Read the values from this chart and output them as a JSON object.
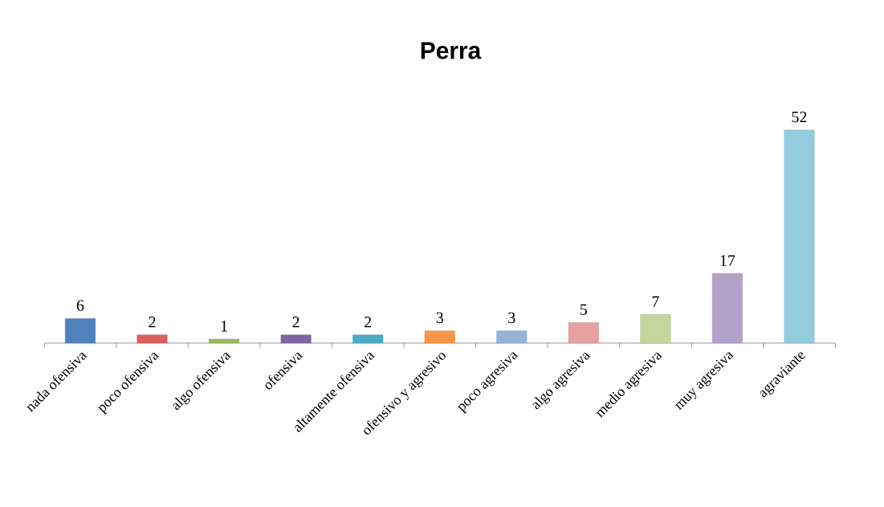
{
  "chart_data": {
    "type": "bar",
    "title": "Perra",
    "categories": [
      "nada ofensiva",
      "poco ofensiva",
      "algo ofensiva",
      "ofensiva",
      "altamente ofensiva",
      "ofensivo y agresivo",
      "poco agresiva",
      "algo agresiva",
      "medio agresiva",
      "muy agresiva",
      "agraviante"
    ],
    "values": [
      6,
      2,
      1,
      2,
      2,
      3,
      3,
      5,
      7,
      17,
      52
    ],
    "colors": [
      "#4f81bd",
      "#d9605c",
      "#9bbb59",
      "#8064a2",
      "#4bacc6",
      "#f79646",
      "#95b3d7",
      "#e6a0a0",
      "#c3d69b",
      "#b3a2c7",
      "#93cddd"
    ],
    "data_labels": true
  }
}
